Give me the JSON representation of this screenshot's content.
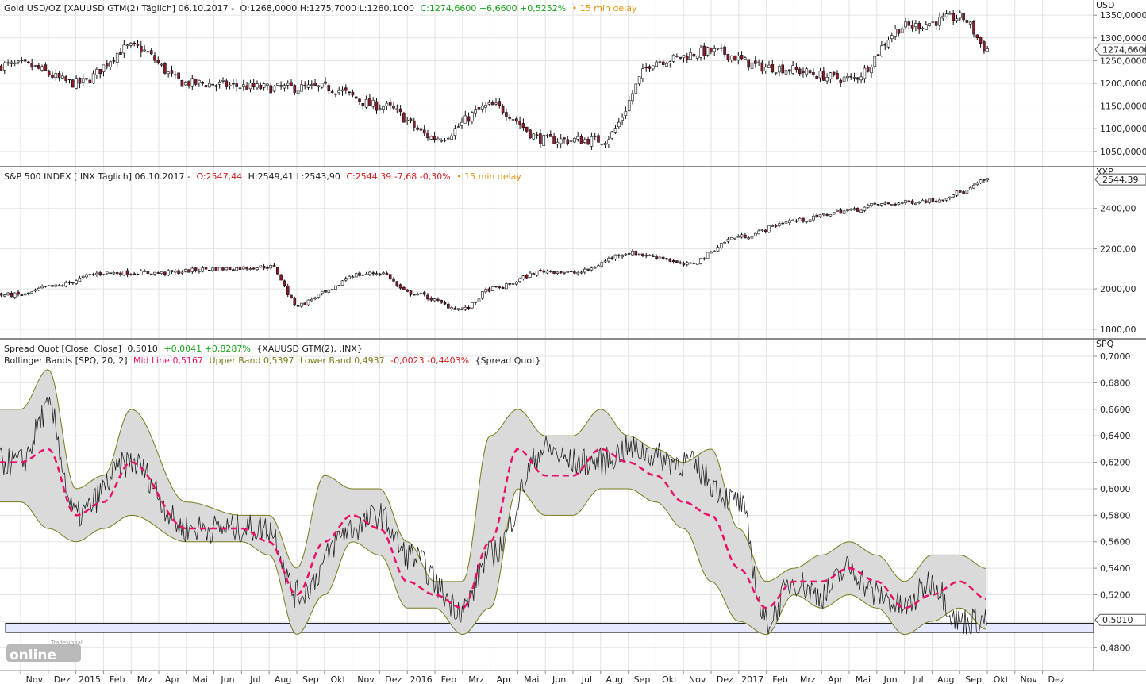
{
  "chart_data": [
    {
      "type": "line",
      "panel": "gold",
      "header": {
        "name": "Gold USD/OZ [XAUUSD GTM(2) Täglich] 06.10.2017 -",
        "ohl": "O:1268,0000 H:1275,7000 L:1260,1000",
        "close": "C:1274,6600 +6,6600 +0,5252%",
        "delay": "• 15 min delay"
      },
      "axis_label": "USD",
      "ylim": [
        1020,
        1380
      ],
      "yticks": [
        1050,
        1100,
        1150,
        1200,
        1250,
        1300,
        1350
      ],
      "ytick_labels": [
        "1050,0000",
        "1100,0000",
        "1150,0000",
        "1200,0000",
        "1250,0000",
        "1300,0000",
        "1350,0000"
      ],
      "last_value": 1274.66,
      "last_label": "1274,6600",
      "colors": {
        "up": "#ffffff",
        "down": "#8b1a2b",
        "wick": "#111111"
      },
      "x_months": [
        0,
        2,
        4,
        6,
        9,
        11,
        13,
        15,
        17,
        19,
        21,
        23,
        25,
        27,
        30,
        32,
        34,
        35
      ],
      "values": [
        1240,
        1200,
        1280,
        1200,
        1190,
        1190,
        1150,
        1080,
        1150,
        1075,
        1075,
        1250,
        1270,
        1235,
        1210,
        1325,
        1345,
        1275
      ]
    },
    {
      "type": "line",
      "panel": "spx",
      "header": {
        "name": "S&P 500 INDEX [.INX Täglich] 06.10.2017 -",
        "open": "O:2547,44",
        "hl": "H:2549,41 L:2543,90",
        "close": "C:2544,39 -7,68 -0,30%",
        "delay": "• 15 min delay"
      },
      "axis_label": "XXP",
      "ylim": [
        1760,
        2600
      ],
      "yticks": [
        1800,
        2000,
        2200,
        2400
      ],
      "ytick_labels": [
        "1800,00",
        "2000,00",
        "2200,00",
        "2400,00"
      ],
      "last_value": 2544.39,
      "last_label": "2544,39",
      "colors": {
        "up": "#ffffff",
        "down": "#8b1a2b",
        "wick": "#111111"
      },
      "x_months": [
        0,
        1,
        3,
        5,
        7,
        9,
        10,
        11,
        12,
        13,
        14,
        16,
        17,
        19,
        20,
        22,
        23,
        24,
        26,
        28,
        30,
        31,
        33,
        34,
        35
      ],
      "values": [
        1970,
        2010,
        2080,
        2080,
        2100,
        2110,
        1920,
        1980,
        2070,
        2080,
        1980,
        1900,
        2000,
        2090,
        2080,
        2180,
        2160,
        2120,
        2260,
        2340,
        2390,
        2420,
        2440,
        2480,
        2545
      ]
    },
    {
      "type": "line",
      "panel": "spread",
      "header": {
        "line1_name": "Spread Quot [Close, Close]",
        "line1_value": "0,5010",
        "line1_change": "+0,0041 +0,8287%",
        "line1_source": "{XAUUSD GTM(2), .INX}",
        "line2_name": "Bollinger Bands [SPQ, 20, 2]",
        "mid": "Mid Line 0,5167",
        "upper": "Upper Band 0,5397",
        "lower": "Lower Band 0,4937",
        "change": "-0,0023 -0,4403%",
        "source": "{Spread Quot}"
      },
      "axis_label": "SPQ",
      "ylim": [
        0.464,
        0.712
      ],
      "yticks": [
        0.48,
        0.5,
        0.52,
        0.54,
        0.56,
        0.58,
        0.6,
        0.62,
        0.64,
        0.66,
        0.68,
        0.7
      ],
      "ytick_labels": [
        "0,4800",
        "0,5000",
        "0,5200",
        "0,5400",
        "0,5600",
        "0,5800",
        "0,6000",
        "0,6200",
        "0,6400",
        "0,6600",
        "0,6800",
        "0,7000"
      ],
      "last_value": 0.501,
      "last_label": "0,5010",
      "support_band": [
        0.4915,
        0.4985
      ],
      "colors": {
        "series": "#222222",
        "mid": "#e8106a",
        "band_line": "#7a7a1a",
        "band_fill": "#dadada",
        "support": "#e6e8ff"
      },
      "series": [
        {
          "name": "Spread Quot",
          "x_months": [
            0,
            1,
            2,
            4,
            6,
            7,
            9,
            10,
            12,
            13,
            14,
            16,
            17,
            19,
            20,
            21,
            22,
            24,
            26,
            27,
            28,
            29,
            30,
            31,
            32,
            33,
            34,
            35
          ],
          "values": [
            0.62,
            0.66,
            0.58,
            0.62,
            0.57,
            0.57,
            0.57,
            0.52,
            0.57,
            0.58,
            0.55,
            0.51,
            0.55,
            0.63,
            0.62,
            0.62,
            0.63,
            0.62,
            0.59,
            0.5,
            0.53,
            0.52,
            0.54,
            0.52,
            0.51,
            0.53,
            0.5,
            0.501
          ]
        },
        {
          "name": "Mid Line",
          "x_months": [
            0,
            1,
            2,
            3,
            4,
            6,
            8,
            9,
            10,
            11,
            12,
            13,
            14,
            15,
            16,
            17,
            18,
            19,
            20,
            21,
            22,
            23,
            24,
            25,
            26,
            27,
            28,
            29,
            30,
            31,
            32,
            33,
            34,
            35
          ],
          "values": [
            0.62,
            0.63,
            0.58,
            0.59,
            0.62,
            0.57,
            0.57,
            0.56,
            0.52,
            0.56,
            0.58,
            0.57,
            0.53,
            0.52,
            0.51,
            0.56,
            0.63,
            0.61,
            0.61,
            0.63,
            0.62,
            0.61,
            0.59,
            0.58,
            0.54,
            0.51,
            0.53,
            0.53,
            0.54,
            0.53,
            0.51,
            0.52,
            0.53,
            0.5167
          ]
        },
        {
          "name": "Upper Band",
          "x_months": [
            0,
            1,
            2,
            3,
            4,
            6,
            8,
            9,
            10,
            11,
            12,
            13,
            14,
            15,
            16,
            17,
            18,
            19,
            20,
            21,
            22,
            23,
            24,
            25,
            26,
            27,
            28,
            29,
            30,
            31,
            32,
            33,
            34,
            35
          ],
          "values": [
            0.66,
            0.69,
            0.6,
            0.61,
            0.66,
            0.59,
            0.58,
            0.58,
            0.54,
            0.61,
            0.6,
            0.6,
            0.56,
            0.53,
            0.53,
            0.64,
            0.66,
            0.64,
            0.64,
            0.66,
            0.64,
            0.63,
            0.62,
            0.63,
            0.57,
            0.53,
            0.54,
            0.55,
            0.56,
            0.55,
            0.53,
            0.55,
            0.55,
            0.5397
          ]
        },
        {
          "name": "Lower Band",
          "x_months": [
            0,
            1,
            2,
            3,
            4,
            6,
            8,
            9,
            10,
            11,
            12,
            13,
            14,
            15,
            16,
            17,
            18,
            19,
            20,
            21,
            22,
            23,
            24,
            25,
            26,
            27,
            28,
            29,
            30,
            31,
            32,
            33,
            34,
            35
          ],
          "values": [
            0.59,
            0.57,
            0.56,
            0.57,
            0.58,
            0.56,
            0.56,
            0.55,
            0.49,
            0.52,
            0.56,
            0.55,
            0.51,
            0.51,
            0.49,
            0.51,
            0.6,
            0.58,
            0.58,
            0.6,
            0.6,
            0.59,
            0.57,
            0.53,
            0.5,
            0.49,
            0.52,
            0.51,
            0.52,
            0.51,
            0.49,
            0.5,
            0.51,
            0.4937
          ]
        }
      ]
    }
  ],
  "time_axis": {
    "month_labels": [
      "Nov",
      "Dez",
      "2015",
      "Feb",
      "Mrz",
      "Apr",
      "Mai",
      "Jun",
      "Jul",
      "Aug",
      "Sep",
      "Okt",
      "Nov",
      "Dez",
      "2016",
      "Feb",
      "Mrz",
      "Apr",
      "Mai",
      "Jun",
      "Jul",
      "Aug",
      "Sep",
      "Okt",
      "Nov",
      "Dez",
      "2017",
      "Feb",
      "Mrz",
      "Apr",
      "Mai",
      "Jun",
      "Jul",
      "Aug",
      "Sep",
      "Okt",
      "Nov",
      "Dez"
    ],
    "first_month_index": 0,
    "label_month_offset": 0
  },
  "logo": {
    "line1": "Tradesignal",
    "line2": "online"
  }
}
